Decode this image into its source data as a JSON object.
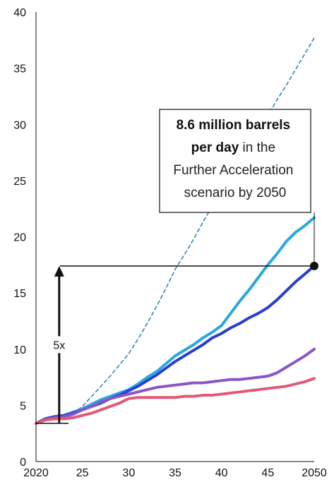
{
  "chart_data": {
    "type": "line",
    "title": "",
    "xlabel": "",
    "ylabel": "",
    "xlim": [
      2020,
      2050
    ],
    "ylim": [
      0,
      40
    ],
    "x_ticks": [
      {
        "value": 2020,
        "label": "2020"
      },
      {
        "value": 2025,
        "label": "25"
      },
      {
        "value": 2030,
        "label": "30"
      },
      {
        "value": 2035,
        "label": "35"
      },
      {
        "value": 2040,
        "label": "40"
      },
      {
        "value": 2045,
        "label": "45"
      },
      {
        "value": 2050,
        "label": "2050"
      }
    ],
    "y_ticks": [
      {
        "value": 0,
        "label": "0"
      },
      {
        "value": 5,
        "label": "5"
      },
      {
        "value": 10,
        "label": "10"
      },
      {
        "value": 15,
        "label": "15"
      },
      {
        "value": 20,
        "label": "20"
      },
      {
        "value": 25,
        "label": "25"
      },
      {
        "value": 30,
        "label": "30"
      },
      {
        "value": 35,
        "label": "35"
      },
      {
        "value": 40,
        "label": "40"
      }
    ],
    "grid": false,
    "legend": "none",
    "x": [
      2020,
      2021,
      2022,
      2023,
      2024,
      2025,
      2026,
      2027,
      2028,
      2029,
      2030,
      2031,
      2032,
      2033,
      2034,
      2035,
      2036,
      2037,
      2038,
      2039,
      2040,
      2041,
      2042,
      2043,
      2044,
      2045,
      2046,
      2047,
      2048,
      2049,
      2050
    ],
    "series": [
      {
        "color": "#2a7fa8",
        "style": "dashed",
        "values": [
          3.4,
          3.7,
          3.9,
          4.0,
          4.3,
          4.9,
          5.8,
          6.7,
          7.6,
          8.6,
          9.6,
          10.9,
          12.3,
          13.8,
          15.4,
          17.1,
          18.4,
          19.8,
          21.3,
          22.7,
          24.1,
          25.5,
          26.8,
          28.2,
          29.5,
          30.8,
          32.2,
          33.5,
          34.9,
          36.3,
          37.7
        ]
      },
      {
        "color": "#29a8e0",
        "style": "solid",
        "values": [
          3.4,
          3.8,
          4.0,
          4.1,
          4.4,
          4.7,
          5.1,
          5.5,
          5.8,
          6.1,
          6.4,
          6.9,
          7.5,
          8.0,
          8.7,
          9.4,
          9.9,
          10.4,
          11.0,
          11.5,
          12.1,
          13.2,
          14.3,
          15.3,
          16.4,
          17.5,
          18.5,
          19.6,
          20.4,
          21.0,
          21.7
        ]
      },
      {
        "color": "#2a3fd0",
        "style": "solid",
        "values": [
          3.4,
          3.8,
          4.0,
          4.1,
          4.3,
          4.6,
          4.9,
          5.2,
          5.6,
          5.9,
          6.3,
          6.7,
          7.2,
          7.7,
          8.3,
          8.9,
          9.4,
          9.9,
          10.4,
          11.0,
          11.4,
          11.9,
          12.3,
          12.8,
          13.2,
          13.7,
          14.4,
          15.2,
          16.0,
          16.7,
          17.4
        ]
      },
      {
        "color": "#8a55c8",
        "style": "solid",
        "values": [
          3.4,
          3.7,
          3.9,
          4.0,
          4.2,
          4.6,
          4.9,
          5.3,
          5.6,
          5.8,
          6.0,
          6.2,
          6.4,
          6.6,
          6.7,
          6.8,
          6.9,
          7.0,
          7.0,
          7.1,
          7.2,
          7.3,
          7.3,
          7.4,
          7.5,
          7.6,
          7.9,
          8.4,
          8.9,
          9.4,
          10.0
        ]
      },
      {
        "color": "#e05a78",
        "style": "solid",
        "values": [
          3.4,
          3.7,
          3.8,
          3.8,
          3.9,
          4.1,
          4.3,
          4.6,
          4.9,
          5.2,
          5.6,
          5.7,
          5.7,
          5.7,
          5.7,
          5.7,
          5.8,
          5.8,
          5.9,
          5.9,
          6.0,
          6.1,
          6.2,
          6.3,
          6.4,
          6.5,
          6.6,
          6.7,
          6.9,
          7.1,
          7.4
        ]
      }
    ],
    "annotations": {
      "callout": {
        "bold_line1": "8.6 million barrels",
        "bold_line2": "per day",
        "line2_rest": " in the",
        "line3": "Further Acceleration",
        "line4": "scenario by 2050",
        "point": {
          "x": 2050,
          "y": 17.4
        }
      },
      "multiplier": {
        "label": "5x",
        "from_y": 3.4,
        "to_y": 17.4,
        "x": 2022.5
      }
    }
  }
}
